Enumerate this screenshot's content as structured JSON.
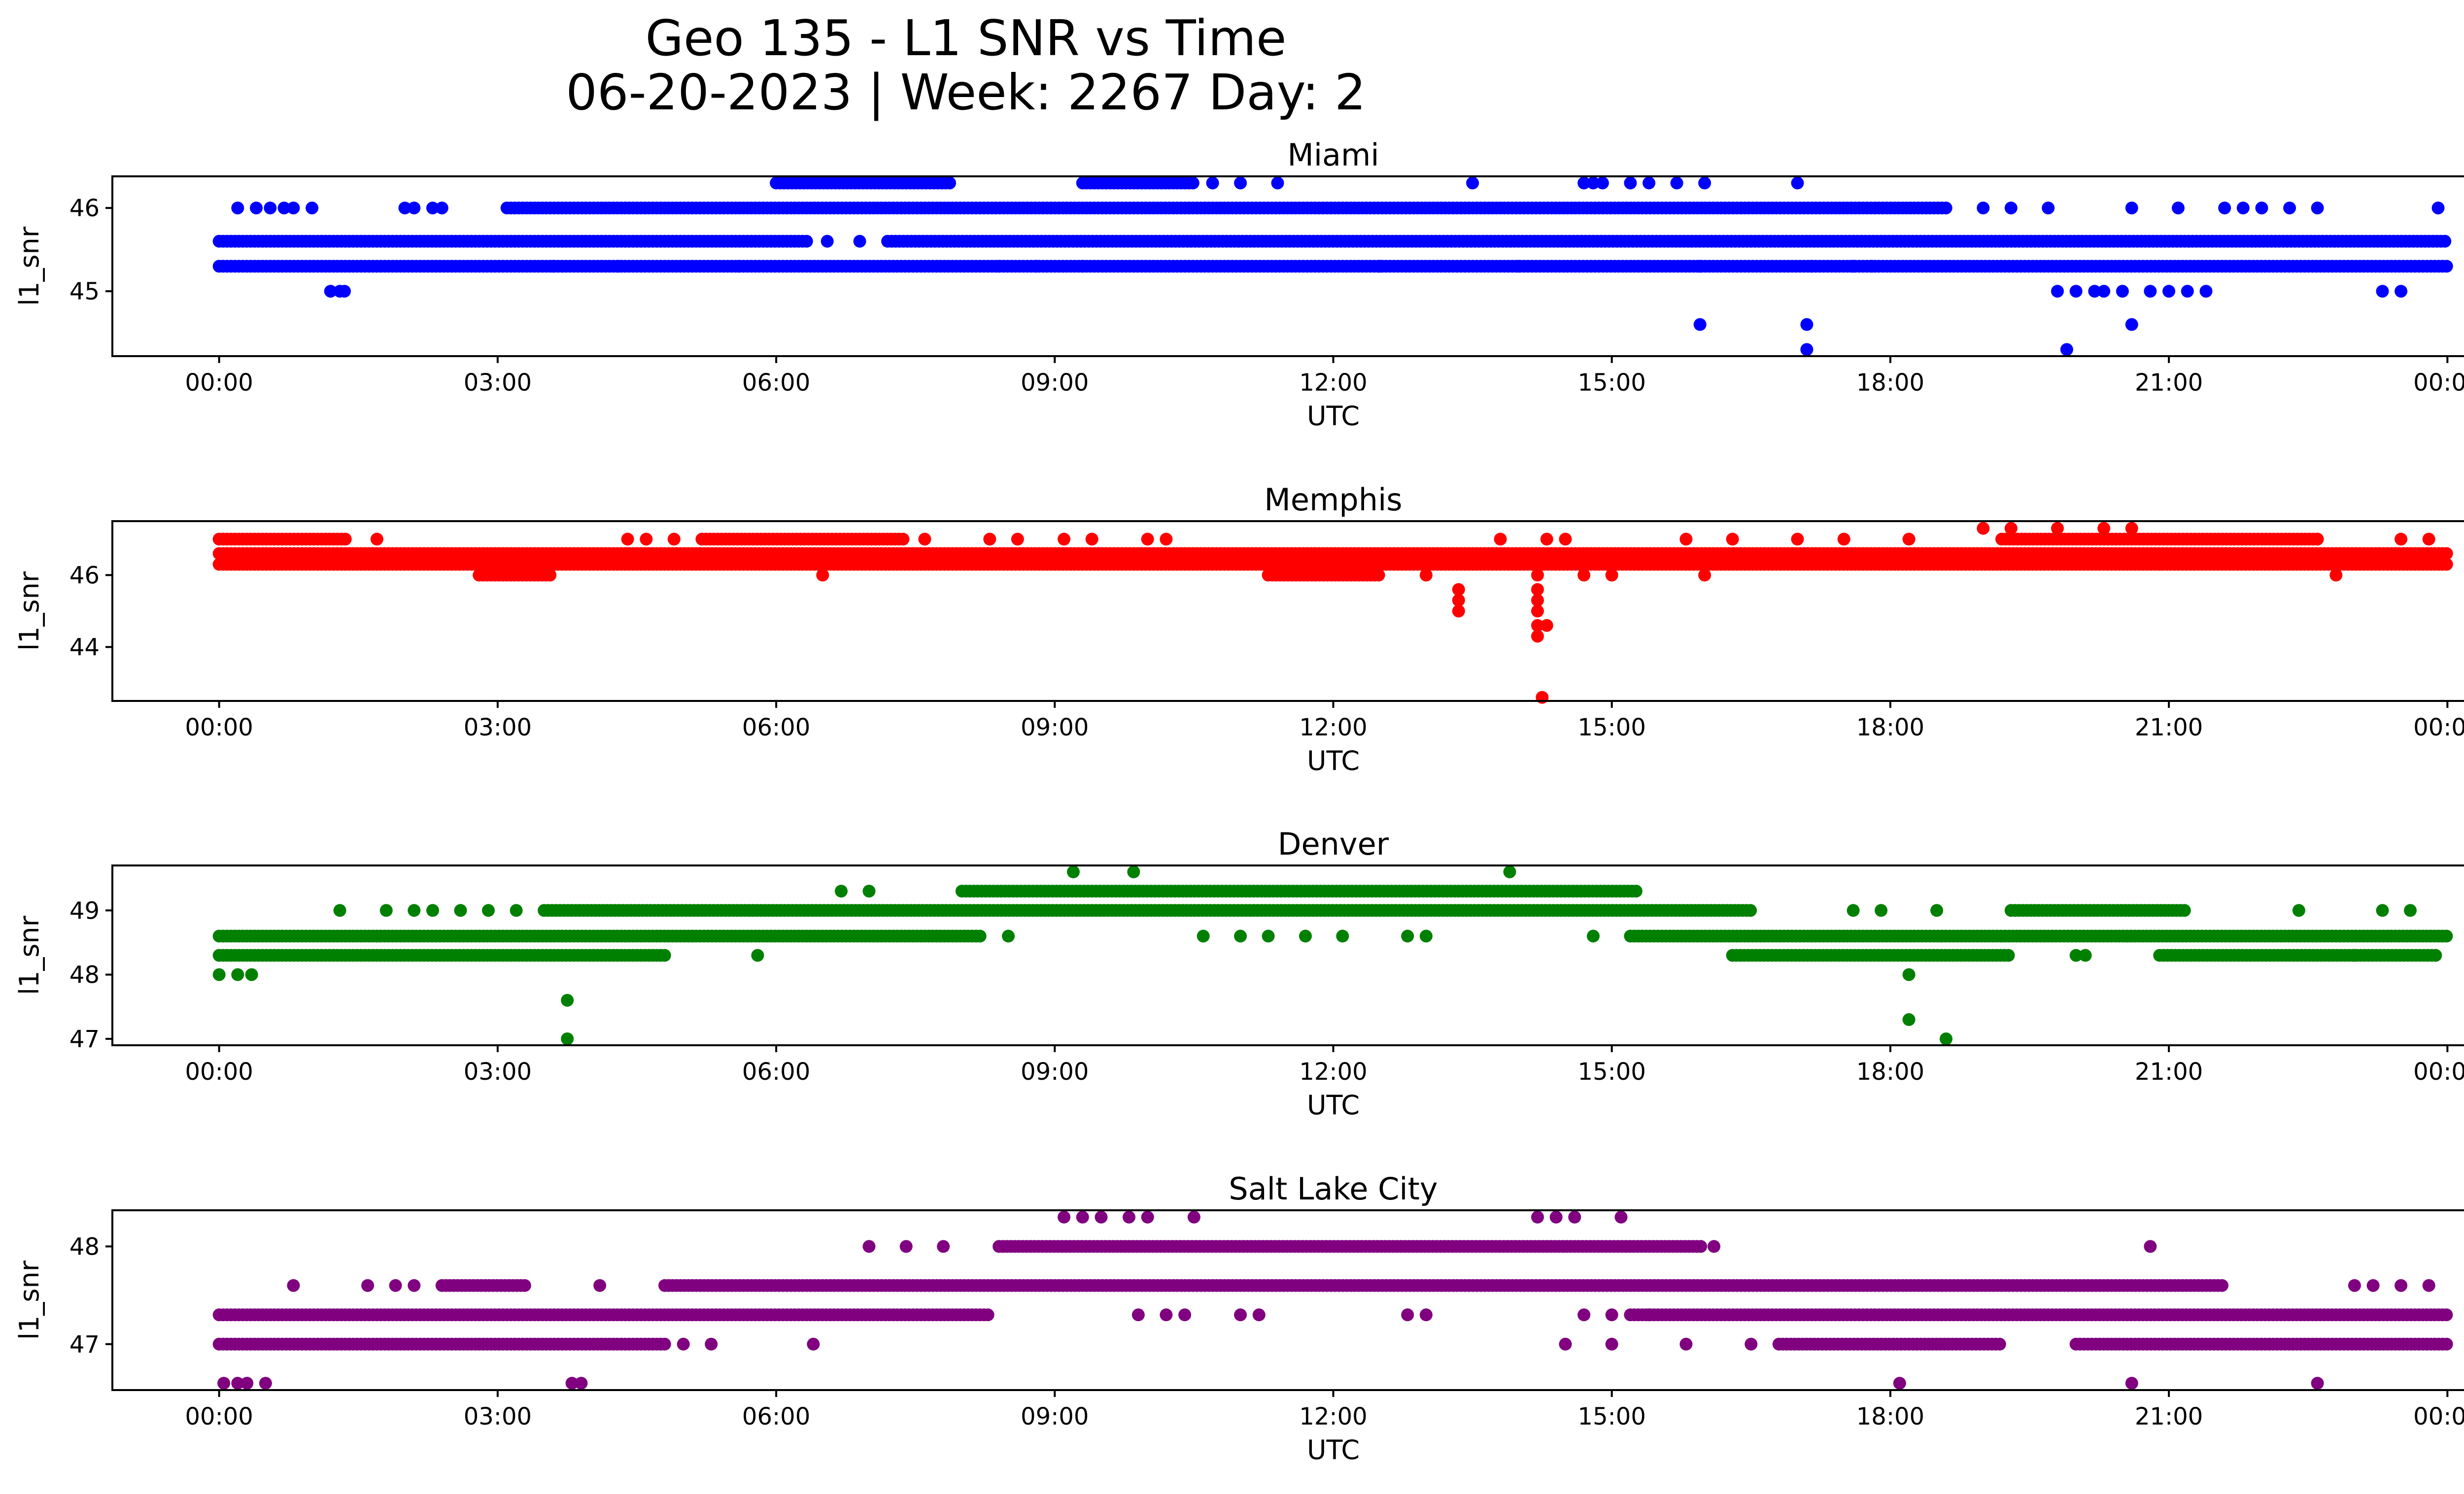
{
  "title_line1": "Geo 135 - L1 SNR vs Time",
  "title_line2": "06-20-2023 | Week: 2267 Day: 2",
  "x_ticks": [
    "00:00",
    "03:00",
    "06:00",
    "09:00",
    "12:00",
    "15:00",
    "18:00",
    "21:00",
    "00:00"
  ],
  "chart_data": [
    {
      "type": "scatter",
      "title": "Miami",
      "xlabel": "UTC",
      "ylabel": "l1_snr",
      "color": "#0000ff",
      "xlim_hours": [
        -1.15,
        25.15
      ],
      "ylim": [
        44.22,
        46.38
      ],
      "yticks": [
        45,
        46
      ],
      "y_levels": [
        44.6,
        45.0,
        45.3,
        45.6,
        46.0,
        46.3
      ],
      "dense_bands": [
        {
          "y": 45.3,
          "start": 0.0,
          "end": 24.0
        },
        {
          "y": 45.6,
          "start": 0.0,
          "end": 6.35
        },
        {
          "y": 45.6,
          "start": 7.2,
          "end": 24.0
        },
        {
          "y": 46.0,
          "start": 3.1,
          "end": 18.6
        },
        {
          "y": 46.3,
          "start": 6.0,
          "end": 7.9
        },
        {
          "y": 46.3,
          "start": 9.3,
          "end": 10.5
        }
      ],
      "points": [
        [
          0.2,
          46.0
        ],
        [
          0.4,
          46.0
        ],
        [
          0.55,
          46.0
        ],
        [
          0.7,
          46.0
        ],
        [
          0.8,
          46.0
        ],
        [
          1.0,
          46.0
        ],
        [
          1.2,
          45.0
        ],
        [
          1.3,
          45.0
        ],
        [
          1.35,
          45.0
        ],
        [
          2.0,
          46.0
        ],
        [
          2.1,
          46.0
        ],
        [
          2.3,
          46.0
        ],
        [
          2.4,
          46.0
        ],
        [
          3.6,
          45.3
        ],
        [
          4.3,
          45.3
        ],
        [
          5.6,
          45.3
        ],
        [
          6.55,
          45.6
        ],
        [
          6.9,
          45.6
        ],
        [
          8.4,
          45.3
        ],
        [
          8.8,
          45.3
        ],
        [
          9.3,
          45.3
        ],
        [
          10.7,
          46.3
        ],
        [
          11.0,
          46.3
        ],
        [
          11.4,
          46.3
        ],
        [
          12.5,
          45.3
        ],
        [
          13.5,
          46.3
        ],
        [
          14.0,
          45.3
        ],
        [
          14.7,
          46.3
        ],
        [
          14.8,
          46.3
        ],
        [
          14.9,
          46.3
        ],
        [
          15.2,
          46.3
        ],
        [
          15.4,
          46.3
        ],
        [
          15.7,
          46.3
        ],
        [
          16.0,
          46.3
        ],
        [
          15.95,
          45.3
        ],
        [
          15.95,
          44.6
        ],
        [
          17.1,
          44.6
        ],
        [
          17.1,
          44.3
        ],
        [
          17.0,
          46.3
        ],
        [
          17.15,
          45.3
        ],
        [
          17.6,
          45.3
        ],
        [
          17.8,
          45.3
        ],
        [
          19.0,
          46.0
        ],
        [
          19.3,
          46.0
        ],
        [
          19.7,
          46.0
        ],
        [
          19.8,
          45.0
        ],
        [
          20.0,
          45.0
        ],
        [
          20.2,
          45.0
        ],
        [
          20.3,
          45.0
        ],
        [
          19.9,
          44.3
        ],
        [
          20.6,
          44.6
        ],
        [
          20.5,
          45.0
        ],
        [
          20.6,
          46.0
        ],
        [
          20.8,
          45.0
        ],
        [
          21.0,
          45.0
        ],
        [
          21.2,
          45.0
        ],
        [
          21.4,
          45.0
        ],
        [
          21.1,
          46.0
        ],
        [
          21.6,
          46.0
        ],
        [
          21.8,
          46.0
        ],
        [
          22.0,
          46.0
        ],
        [
          22.3,
          46.0
        ],
        [
          22.6,
          46.0
        ],
        [
          23.3,
          45.0
        ],
        [
          23.5,
          45.0
        ],
        [
          23.9,
          46.0
        ]
      ]
    },
    {
      "type": "scatter",
      "title": "Memphis",
      "xlabel": "UTC",
      "ylabel": "l1_snr",
      "color": "#ff0000",
      "xlim_hours": [
        -1.15,
        25.15
      ],
      "ylim": [
        42.5,
        47.5
      ],
      "yticks": [
        44,
        46
      ],
      "y_levels": [
        42.6,
        44.3,
        44.6,
        45.0,
        45.3,
        45.6,
        46.0,
        46.3,
        46.6,
        47.0,
        47.3
      ],
      "dense_bands": [
        {
          "y": 46.3,
          "start": 0.0,
          "end": 24.0
        },
        {
          "y": 46.6,
          "start": 0.0,
          "end": 24.0
        },
        {
          "y": 47.0,
          "start": 0.0,
          "end": 1.4
        },
        {
          "y": 47.0,
          "start": 5.2,
          "end": 7.4
        },
        {
          "y": 47.0,
          "start": 19.2,
          "end": 22.6
        },
        {
          "y": 46.0,
          "start": 2.8,
          "end": 3.6
        },
        {
          "y": 46.0,
          "start": 11.3,
          "end": 12.5
        }
      ],
      "points": [
        [
          1.7,
          47.0
        ],
        [
          4.4,
          47.0
        ],
        [
          4.6,
          47.0
        ],
        [
          4.9,
          47.0
        ],
        [
          6.5,
          46.0
        ],
        [
          7.6,
          47.0
        ],
        [
          8.3,
          47.0
        ],
        [
          8.6,
          47.0
        ],
        [
          9.1,
          47.0
        ],
        [
          9.4,
          47.0
        ],
        [
          10.0,
          47.0
        ],
        [
          10.2,
          47.0
        ],
        [
          13.0,
          46.0
        ],
        [
          13.35,
          45.6
        ],
        [
          13.35,
          45.3
        ],
        [
          13.35,
          45.0
        ],
        [
          13.8,
          47.0
        ],
        [
          14.2,
          46.0
        ],
        [
          14.2,
          45.6
        ],
        [
          14.2,
          45.3
        ],
        [
          14.2,
          45.0
        ],
        [
          14.2,
          44.6
        ],
        [
          14.2,
          44.3
        ],
        [
          14.3,
          44.6
        ],
        [
          14.25,
          42.6
        ],
        [
          14.3,
          47.0
        ],
        [
          14.5,
          47.0
        ],
        [
          14.7,
          46.0
        ],
        [
          15.0,
          46.0
        ],
        [
          15.8,
          47.0
        ],
        [
          16.0,
          46.0
        ],
        [
          16.3,
          47.0
        ],
        [
          17.0,
          47.0
        ],
        [
          17.5,
          47.0
        ],
        [
          18.2,
          47.0
        ],
        [
          19.0,
          47.3
        ],
        [
          19.3,
          47.3
        ],
        [
          19.8,
          47.3
        ],
        [
          20.3,
          47.3
        ],
        [
          20.6,
          47.3
        ],
        [
          20.9,
          46.3
        ],
        [
          22.6,
          47.0
        ],
        [
          22.8,
          46.0
        ],
        [
          23.5,
          47.0
        ],
        [
          23.8,
          47.0
        ]
      ]
    },
    {
      "type": "scatter",
      "title": "Denver",
      "xlabel": "UTC",
      "ylabel": "l1_snr",
      "color": "#008000",
      "xlim_hours": [
        -1.15,
        25.15
      ],
      "ylim": [
        46.9,
        49.7
      ],
      "yticks": [
        47,
        48,
        49
      ],
      "y_levels": [
        47.0,
        47.3,
        47.6,
        48.0,
        48.3,
        48.6,
        49.0,
        49.3,
        49.6
      ],
      "dense_bands": [
        {
          "y": 48.3,
          "start": 0.0,
          "end": 4.8
        },
        {
          "y": 48.6,
          "start": 0.0,
          "end": 8.2
        },
        {
          "y": 49.0,
          "start": 3.5,
          "end": 16.5
        },
        {
          "y": 49.3,
          "start": 8.0,
          "end": 15.3
        },
        {
          "y": 48.6,
          "start": 15.2,
          "end": 24.0
        },
        {
          "y": 48.3,
          "start": 16.3,
          "end": 19.3
        },
        {
          "y": 49.0,
          "start": 19.3,
          "end": 21.2
        },
        {
          "y": 48.3,
          "start": 20.9,
          "end": 23.9
        }
      ],
      "points": [
        [
          0.0,
          48.0
        ],
        [
          0.2,
          48.0
        ],
        [
          0.35,
          48.0
        ],
        [
          1.3,
          49.0
        ],
        [
          1.8,
          49.0
        ],
        [
          2.1,
          49.0
        ],
        [
          2.3,
          49.0
        ],
        [
          2.6,
          49.0
        ],
        [
          2.9,
          49.0
        ],
        [
          3.2,
          49.0
        ],
        [
          3.75,
          47.6
        ],
        [
          3.75,
          47.0
        ],
        [
          5.8,
          48.3
        ],
        [
          6.7,
          49.3
        ],
        [
          7.0,
          49.3
        ],
        [
          8.5,
          48.6
        ],
        [
          9.2,
          49.6
        ],
        [
          9.85,
          49.6
        ],
        [
          10.6,
          48.6
        ],
        [
          11.0,
          48.6
        ],
        [
          11.3,
          48.6
        ],
        [
          11.7,
          48.6
        ],
        [
          12.1,
          48.6
        ],
        [
          12.8,
          48.6
        ],
        [
          13.0,
          48.6
        ],
        [
          13.9,
          49.6
        ],
        [
          14.8,
          48.6
        ],
        [
          17.6,
          49.0
        ],
        [
          17.9,
          49.0
        ],
        [
          18.2,
          48.0
        ],
        [
          18.2,
          47.3
        ],
        [
          18.6,
          47.0
        ],
        [
          18.5,
          49.0
        ],
        [
          20.0,
          48.3
        ],
        [
          20.1,
          48.3
        ],
        [
          22.4,
          49.0
        ],
        [
          23.0,
          48.3
        ],
        [
          23.3,
          49.0
        ],
        [
          23.6,
          49.0
        ]
      ]
    },
    {
      "type": "scatter",
      "title": "Salt Lake City",
      "xlabel": "UTC",
      "ylabel": "l1_snr",
      "color": "#800080",
      "xlim_hours": [
        -1.15,
        25.15
      ],
      "ylim": [
        46.53,
        48.37
      ],
      "yticks": [
        47,
        48
      ],
      "y_levels": [
        46.6,
        47.0,
        47.3,
        47.6,
        48.0,
        48.3
      ],
      "dense_bands": [
        {
          "y": 47.3,
          "start": 0.0,
          "end": 8.3
        },
        {
          "y": 47.0,
          "start": 0.0,
          "end": 4.8
        },
        {
          "y": 47.6,
          "start": 2.4,
          "end": 3.3
        },
        {
          "y": 47.6,
          "start": 4.8,
          "end": 21.6
        },
        {
          "y": 48.0,
          "start": 8.4,
          "end": 16.0
        },
        {
          "y": 47.3,
          "start": 15.2,
          "end": 24.0
        },
        {
          "y": 47.0,
          "start": 16.8,
          "end": 19.2
        },
        {
          "y": 47.0,
          "start": 20.0,
          "end": 24.0
        }
      ],
      "points": [
        [
          0.05,
          46.6
        ],
        [
          0.2,
          46.6
        ],
        [
          0.3,
          46.6
        ],
        [
          0.5,
          46.6
        ],
        [
          0.8,
          47.6
        ],
        [
          1.6,
          47.6
        ],
        [
          1.9,
          47.6
        ],
        [
          2.1,
          47.6
        ],
        [
          3.8,
          46.6
        ],
        [
          3.9,
          46.6
        ],
        [
          4.1,
          47.6
        ],
        [
          5.0,
          47.0
        ],
        [
          5.3,
          47.0
        ],
        [
          6.4,
          47.0
        ],
        [
          7.0,
          48.0
        ],
        [
          7.4,
          48.0
        ],
        [
          7.8,
          48.0
        ],
        [
          9.1,
          48.3
        ],
        [
          9.3,
          48.3
        ],
        [
          9.5,
          48.3
        ],
        [
          9.8,
          48.3
        ],
        [
          10.0,
          48.3
        ],
        [
          10.5,
          48.3
        ],
        [
          9.9,
          47.3
        ],
        [
          10.2,
          47.3
        ],
        [
          10.4,
          47.3
        ],
        [
          11.0,
          47.3
        ],
        [
          11.2,
          47.3
        ],
        [
          12.8,
          47.3
        ],
        [
          13.0,
          47.3
        ],
        [
          14.2,
          48.3
        ],
        [
          14.4,
          48.3
        ],
        [
          14.6,
          48.3
        ],
        [
          14.5,
          47.0
        ],
        [
          14.7,
          47.3
        ],
        [
          15.0,
          47.0
        ],
        [
          15.1,
          48.3
        ],
        [
          15.0,
          47.3
        ],
        [
          15.4,
          47.3
        ],
        [
          15.8,
          47.0
        ],
        [
          16.1,
          48.0
        ],
        [
          16.5,
          47.0
        ],
        [
          18.1,
          46.6
        ],
        [
          20.6,
          46.6
        ],
        [
          20.8,
          48.0
        ],
        [
          22.6,
          46.6
        ],
        [
          23.0,
          47.6
        ],
        [
          23.2,
          47.6
        ],
        [
          23.5,
          47.6
        ],
        [
          23.8,
          47.6
        ]
      ]
    }
  ]
}
